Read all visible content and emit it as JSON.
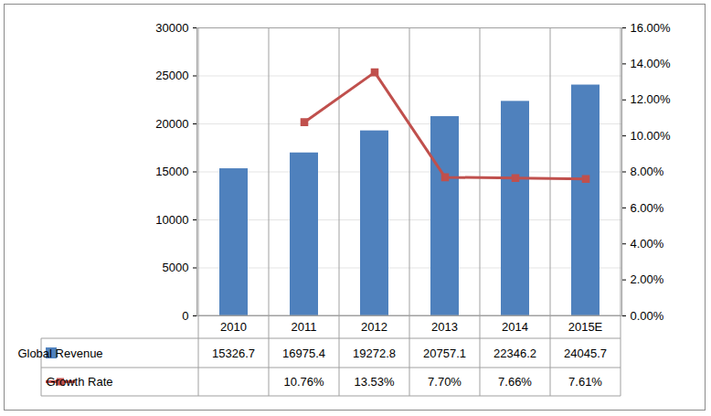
{
  "chart_data": {
    "type": "bar",
    "categories": [
      "2010",
      "2011",
      "2012",
      "2013",
      "2014",
      "2015E"
    ],
    "series": [
      {
        "name": "Global Revenue",
        "type": "bar",
        "color": "#4f81bd",
        "values": [
          15326.7,
          16975.4,
          19272.8,
          20757.1,
          22346.2,
          24045.7
        ]
      },
      {
        "name": "Growth Rate",
        "type": "line",
        "axis": "y2",
        "color": "#c0504d",
        "marker": "square",
        "values": [
          null,
          10.76,
          13.53,
          7.7,
          7.66,
          7.61
        ],
        "value_labels": [
          null,
          "10.76%",
          "13.53%",
          "7.70%",
          "7.66%",
          "7.61%"
        ]
      }
    ],
    "ylim": [
      0,
      30000
    ],
    "yticks": [
      0,
      5000,
      10000,
      15000,
      20000,
      25000,
      30000
    ],
    "y2lim": [
      0,
      16
    ],
    "y2ticks": [
      {
        "value": 0,
        "label": "0.00%"
      },
      {
        "value": 2,
        "label": "2.00%"
      },
      {
        "value": 4,
        "label": "4.00%"
      },
      {
        "value": 6,
        "label": "6.00%"
      },
      {
        "value": 8,
        "label": "8.00%"
      },
      {
        "value": 10,
        "label": "10.00%"
      },
      {
        "value": 12,
        "label": "12.00%"
      },
      {
        "value": 14,
        "label": "14.00%"
      },
      {
        "value": 16,
        "label": "16.00%"
      }
    ],
    "grid": true,
    "data_labels": true
  }
}
